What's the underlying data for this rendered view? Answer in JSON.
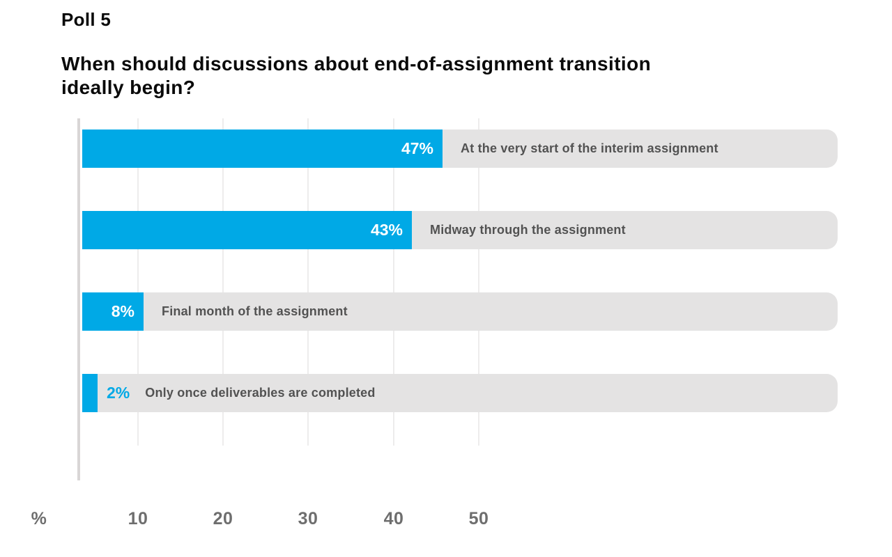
{
  "header": {
    "poll_label": "Poll 5",
    "question_line1": "When should discussions about end-of-assignment transition",
    "question_line2": "ideally begin?"
  },
  "chart_data": {
    "type": "bar",
    "orientation": "horizontal",
    "title": "When should discussions about end-of-assignment transition ideally begin?",
    "categories": [
      "At the very start of the interim assignment",
      "Midway through the assignment",
      "Final month of the assignment",
      "Only once deliverables are completed"
    ],
    "values": [
      47,
      43,
      8,
      2
    ],
    "value_labels": [
      "47%",
      "43%",
      "8%",
      "2%"
    ],
    "x_axis": {
      "unit_label": "%",
      "tick_labels": [
        "10",
        "20",
        "30",
        "40",
        "50"
      ],
      "tick_values": [
        10,
        20,
        30,
        40,
        50
      ],
      "range": [
        0,
        55
      ]
    },
    "grid": true,
    "legend": false,
    "colors": {
      "bar": "#00A9E6",
      "track": "#E4E3E3",
      "value_label_inside": "#FFFFFF",
      "value_label_outside": "#00A9E6",
      "category_label": "#525252",
      "axis_label": "#6E6E6E"
    }
  }
}
